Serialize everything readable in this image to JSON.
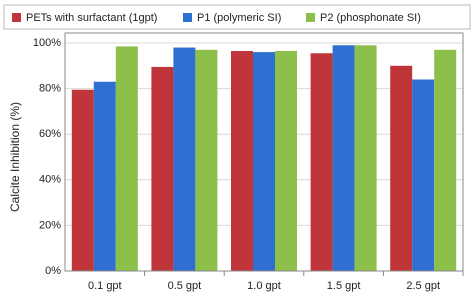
{
  "chart_data": {
    "type": "bar",
    "ylabel": "Calcite Inhibition (%)",
    "categories": [
      "0.1 gpt",
      "0.5 gpt",
      "1.0 gpt",
      "1.5 gpt",
      "2.5 gpt"
    ],
    "series": [
      {
        "name": "PETs with surfactant (1gpt)",
        "color": "#c0353a",
        "values": [
          79.5,
          89.5,
          96.5,
          95.5,
          90
        ]
      },
      {
        "name": "P1 (polymeric SI)",
        "color": "#2e6fd1",
        "values": [
          83,
          98,
          96,
          99,
          84
        ]
      },
      {
        "name": "P2 (phosphonate SI)",
        "color": "#8dc04b",
        "values": [
          98.5,
          97,
          96.5,
          99,
          97
        ]
      }
    ],
    "ylim": [
      0,
      100
    ],
    "yticks": [
      {
        "value": 0,
        "label": "0%"
      },
      {
        "value": 20,
        "label": "20%"
      },
      {
        "value": 40,
        "label": "40%"
      },
      {
        "value": 60,
        "label": "60%"
      },
      {
        "value": 80,
        "label": "80%"
      },
      {
        "value": 100,
        "label": "100%"
      }
    ],
    "grid": true,
    "legend": "top"
  }
}
